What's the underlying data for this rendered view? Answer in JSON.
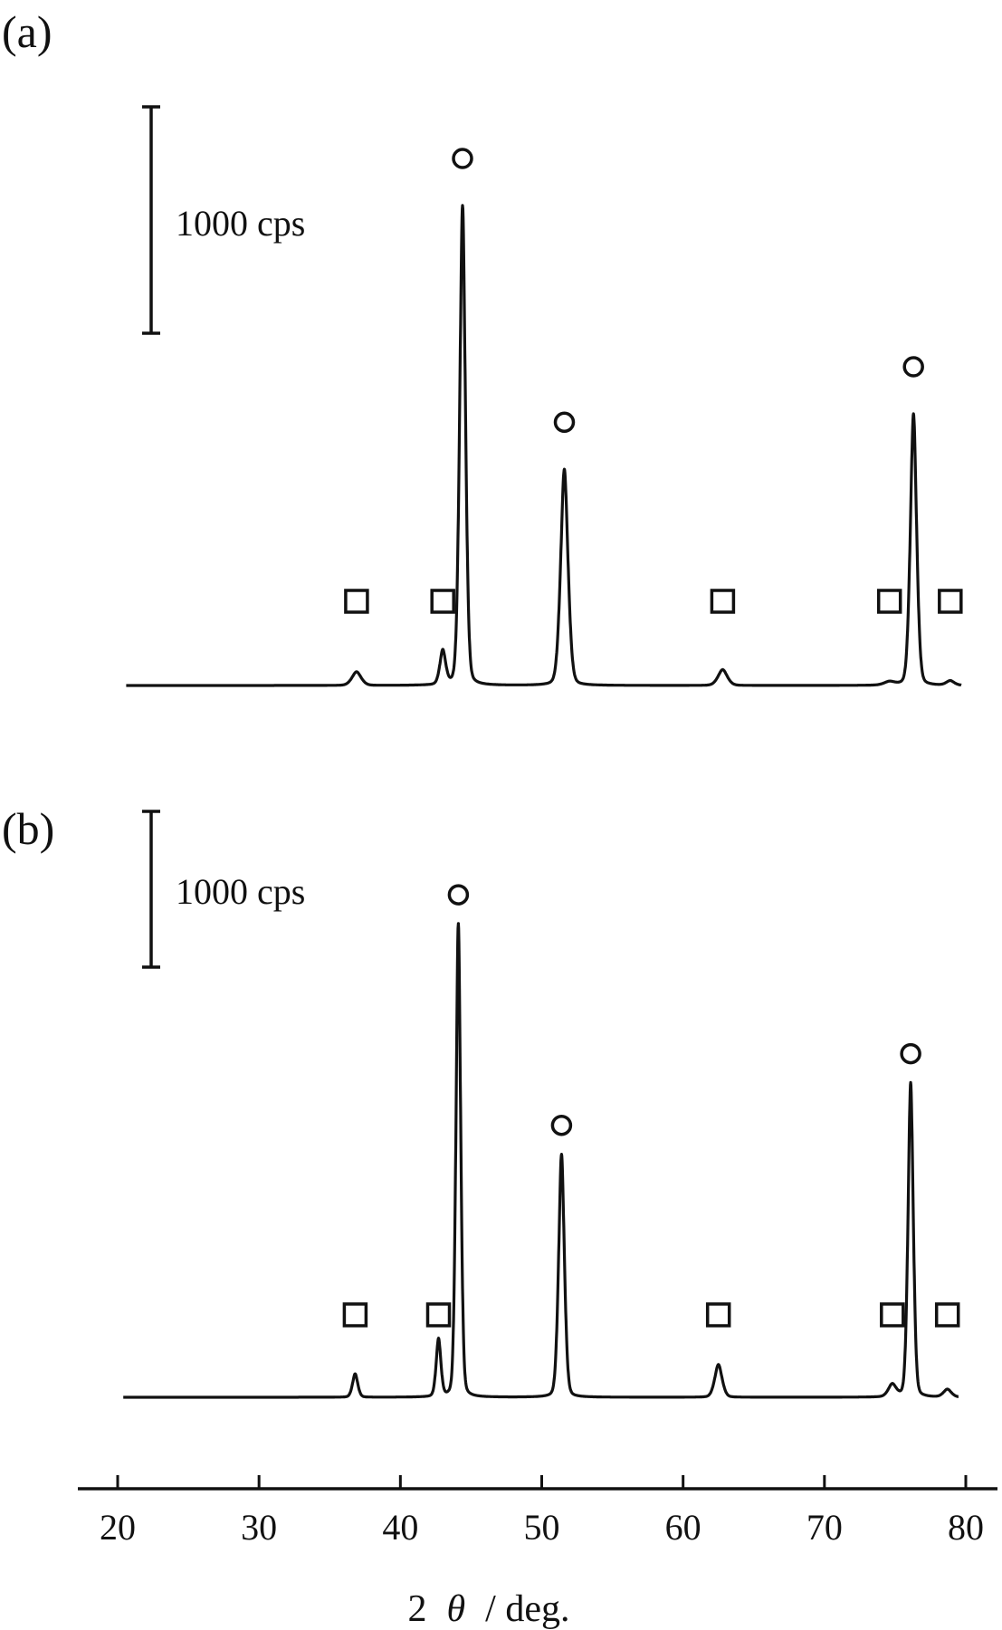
{
  "chart_data": {
    "type": "line",
    "xlabel_prefix": "2",
    "xlabel_symbol": "θ",
    "xlabel_unit": "/ deg.",
    "xlim": [
      20,
      80
    ],
    "x_ticks": [
      20,
      30,
      40,
      50,
      60,
      70,
      80
    ],
    "legend_markers": {
      "circle": "circle",
      "square": "square"
    },
    "panels": [
      {
        "label": "(a)",
        "scale_bar_label": "1000 cps",
        "scale_bar_cps": 1000,
        "baseline_cps": 0,
        "peaks": [
          {
            "x": 36.9,
            "height_cps": 60,
            "width": 0.35,
            "marker": "square"
          },
          {
            "x": 43.0,
            "height_cps": 150,
            "width": 0.22,
            "marker": "square"
          },
          {
            "x": 44.4,
            "height_cps": 2120,
            "width": 0.22,
            "marker": "circle"
          },
          {
            "x": 51.6,
            "height_cps": 955,
            "width": 0.28,
            "marker": "circle"
          },
          {
            "x": 62.8,
            "height_cps": 70,
            "width": 0.35,
            "marker": "square"
          },
          {
            "x": 74.6,
            "height_cps": 15,
            "width": 0.4,
            "marker": "square"
          },
          {
            "x": 76.3,
            "height_cps": 1200,
            "width": 0.24,
            "marker": "circle"
          },
          {
            "x": 78.9,
            "height_cps": 20,
            "width": 0.3,
            "marker": "square"
          }
        ]
      },
      {
        "label": "(b)",
        "scale_bar_label": "1000 cps",
        "scale_bar_cps": 1000,
        "baseline_cps": 0,
        "peaks": [
          {
            "x": 36.8,
            "height_cps": 150,
            "width": 0.2,
            "marker": "square"
          },
          {
            "x": 42.7,
            "height_cps": 370,
            "width": 0.18,
            "marker": "square"
          },
          {
            "x": 44.1,
            "height_cps": 3040,
            "width": 0.18,
            "marker": "circle"
          },
          {
            "x": 51.4,
            "height_cps": 1560,
            "width": 0.22,
            "marker": "circle"
          },
          {
            "x": 62.5,
            "height_cps": 210,
            "width": 0.28,
            "marker": "square"
          },
          {
            "x": 74.8,
            "height_cps": 80,
            "width": 0.3,
            "marker": "square"
          },
          {
            "x": 76.1,
            "height_cps": 2020,
            "width": 0.2,
            "marker": "circle"
          },
          {
            "x": 78.7,
            "height_cps": 50,
            "width": 0.3,
            "marker": "square"
          }
        ]
      }
    ]
  }
}
